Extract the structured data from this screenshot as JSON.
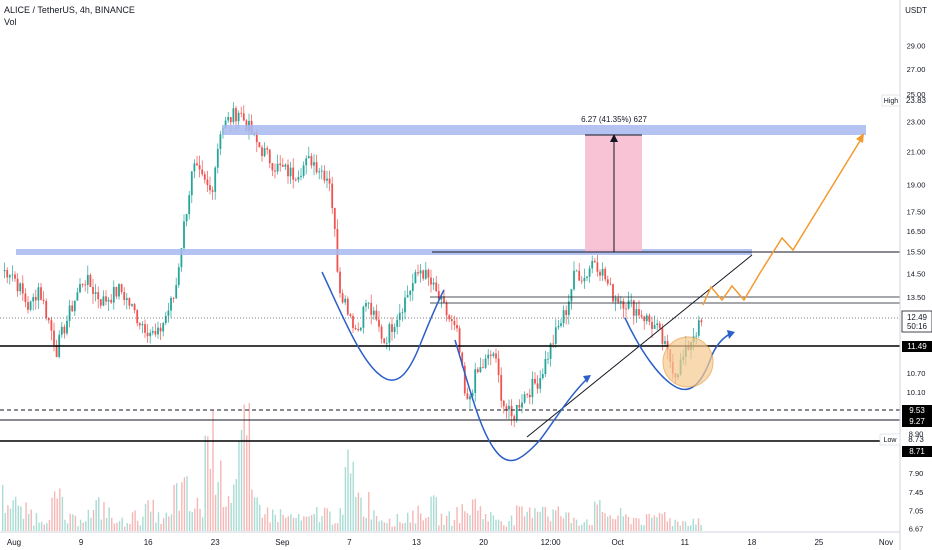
{
  "header": {
    "symbol": "ALICE / TetherUS, 4h, BINANCE",
    "vol_label": "Vol"
  },
  "axis": {
    "currency": "USDT"
  },
  "chart_data": {
    "type": "candlestick",
    "title": "ALICE / TetherUS, 4h, BINANCE",
    "y_scale": "log",
    "ylim": [
      6.6,
      32.5
    ],
    "y_ticks": [
      "29.00",
      "27.00",
      "25.00",
      "23.00",
      "21.00",
      "19.00",
      "17.50",
      "16.50",
      "15.50",
      "14.50",
      "13.50",
      "12.49",
      "11.49",
      "10.70",
      "10.10",
      "9.53",
      "9.27",
      "8.90",
      "8.73",
      "8.71",
      "7.90",
      "7.45",
      "7.05",
      "6.67"
    ],
    "x_ticks": [
      "Aug",
      "9",
      "16",
      "23",
      "Sep",
      "7",
      "13",
      "20",
      "12:00",
      "Oct",
      "11",
      "18",
      "25",
      "Nov"
    ],
    "current_price": "12.49",
    "countdown": "50:16",
    "high_label": "High",
    "high_value": "23.83",
    "low_label": "Low",
    "low_value": "8.73",
    "levels": [
      "11.49",
      "9.53",
      "9.27",
      "8.71"
    ],
    "measure_label": "6.27 (41.35%) 627",
    "price_path": [
      [
        1,
        14.6
      ],
      [
        3,
        13.0
      ],
      [
        4,
        13.9
      ],
      [
        6,
        11.5
      ],
      [
        8,
        13.4
      ],
      [
        9,
        14.3
      ],
      [
        11,
        13.3
      ],
      [
        13,
        13.8
      ],
      [
        15,
        12.6
      ],
      [
        17,
        11.9
      ],
      [
        19,
        13.6
      ],
      [
        21,
        20.0
      ],
      [
        23,
        18.5
      ],
      [
        24,
        22.5
      ],
      [
        26,
        23.8
      ],
      [
        28,
        21.5
      ],
      [
        30,
        20.1
      ],
      [
        32,
        19.6
      ],
      [
        34,
        20.5
      ],
      [
        36,
        19.3
      ],
      [
        37,
        14.0
      ],
      [
        39,
        12.1
      ],
      [
        40,
        13.3
      ],
      [
        42,
        11.8
      ],
      [
        44,
        13.2
      ],
      [
        46,
        14.7
      ],
      [
        47,
        14.1
      ],
      [
        48,
        13.4
      ],
      [
        50,
        12.0
      ],
      [
        51,
        9.6
      ],
      [
        52,
        10.6
      ],
      [
        54,
        11.4
      ],
      [
        55,
        9.8
      ],
      [
        56,
        9.3
      ],
      [
        57,
        9.9
      ],
      [
        59,
        10.5
      ],
      [
        61,
        12.2
      ],
      [
        62,
        13.0
      ],
      [
        63,
        14.6
      ],
      [
        64,
        14.3
      ],
      [
        65,
        15.2
      ],
      [
        66,
        14.5
      ],
      [
        67,
        13.6
      ],
      [
        68,
        13.4
      ],
      [
        70,
        12.9
      ],
      [
        72,
        12.2
      ],
      [
        73,
        11.4
      ],
      [
        74,
        10.7
      ],
      [
        75,
        11.3
      ],
      [
        76,
        12.1
      ],
      [
        77,
        12.49
      ]
    ],
    "volume": [
      0.35,
      0.2,
      0.15,
      0.3,
      0.12,
      0.18,
      0.25,
      0.1,
      0.15,
      0.22,
      0.14,
      0.4,
      0.25,
      0.95,
      0.5,
      0.9,
      0.3,
      0.18,
      0.15,
      0.12,
      0.2,
      0.16,
      0.6,
      0.3,
      0.15,
      0.12,
      0.18,
      0.25,
      0.14,
      0.2,
      0.28,
      0.15,
      0.12,
      0.18,
      0.3,
      0.2,
      0.15,
      0.12,
      0.22,
      0.16,
      0.14,
      0.12,
      0.18,
      0.1,
      0.12
    ],
    "grid": false,
    "colors": {
      "up": "#26a69a",
      "down": "#ef5350",
      "zone": "#a7b8f0",
      "measure_box": "#f7bcd0",
      "pattern_curve": "#2c5fc7",
      "projection": "#f39a2e",
      "circle_fill": "#f6c98f"
    }
  }
}
